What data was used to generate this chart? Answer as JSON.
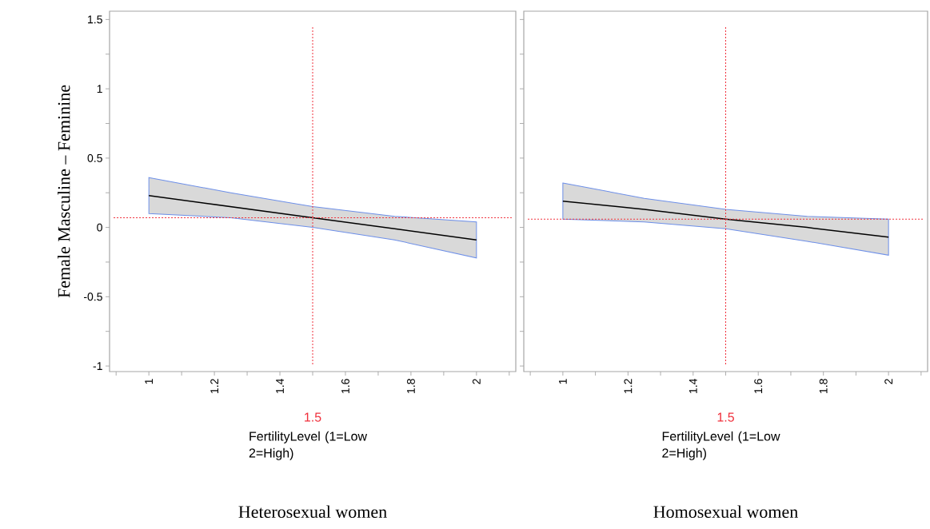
{
  "chart_data": [
    {
      "type": "line",
      "title": "Heterosexual women",
      "xlabel": "FertilityLevel (1=Low 2=High)",
      "ylabel": "Female Masculine – Feminine",
      "xlim": [
        0.88,
        2.12
      ],
      "ylim": [
        -1.04,
        1.56
      ],
      "xticks": [
        {
          "value": 0.9,
          "label": null
        },
        1,
        {
          "value": 1.1,
          "label": null
        },
        1.2,
        {
          "value": 1.3,
          "label": null
        },
        1.4,
        {
          "value": 1.5,
          "label": null
        },
        1.6,
        {
          "value": 1.7,
          "label": null
        },
        1.8,
        {
          "value": 1.9,
          "label": null
        },
        2,
        {
          "value": 2.1,
          "label": null
        }
      ],
      "yticks": [
        -1,
        {
          "value": -0.75,
          "label": null
        },
        -0.5,
        {
          "value": -0.25,
          "label": null
        },
        0,
        {
          "value": 0.25,
          "label": null
        },
        0.5,
        {
          "value": 0.75,
          "label": null
        },
        1,
        {
          "value": 1.25,
          "label": null
        },
        1.5
      ],
      "series": [
        {
          "color": "#000000",
          "x": [
            1,
            1.25,
            1.5,
            1.75,
            2
          ],
          "values": [
            0.23,
            0.15,
            0.07,
            -0.01,
            -0.09
          ],
          "lower": [
            0.1,
            0.07,
            0,
            -0.09,
            -0.22
          ],
          "upper": [
            0.36,
            0.25,
            0.15,
            0.08,
            0.04
          ]
        }
      ],
      "ref_lines": [
        {
          "axis": "x",
          "value": 1.5,
          "label": "1.5",
          "color": "#f0303c",
          "line_style": "dotted"
        },
        {
          "axis": "y",
          "value": 0.07,
          "color": "#f0303c",
          "line_style": "dotted"
        }
      ]
    },
    {
      "type": "line",
      "title": "Homosexual women",
      "xlabel": "FertilityLevel (1=Low 2=High)",
      "tick_labels": "x",
      "xlim": [
        0.88,
        2.12
      ],
      "ylim": [
        -1.04,
        1.56
      ],
      "xticks": [
        {
          "value": 0.9,
          "label": null
        },
        1,
        {
          "value": 1.1,
          "label": null
        },
        1.2,
        {
          "value": 1.3,
          "label": null
        },
        1.4,
        {
          "value": 1.5,
          "label": null
        },
        1.6,
        {
          "value": 1.7,
          "label": null
        },
        1.8,
        {
          "value": 1.9,
          "label": null
        },
        2,
        {
          "value": 2.1,
          "label": null
        }
      ],
      "yticks": [
        -1,
        {
          "value": -0.75,
          "label": null
        },
        -0.5,
        {
          "value": -0.25,
          "label": null
        },
        0,
        {
          "value": 0.25,
          "label": null
        },
        0.5,
        {
          "value": 0.75,
          "label": null
        },
        1,
        {
          "value": 1.25,
          "label": null
        },
        1.5
      ],
      "series": [
        {
          "color": "#000000",
          "x": [
            1,
            1.25,
            1.5,
            1.75,
            2
          ],
          "values": [
            0.19,
            0.13,
            0.06,
            0,
            -0.07
          ],
          "lower": [
            0.06,
            0.04,
            -0.01,
            -0.1,
            -0.2
          ],
          "upper": [
            0.32,
            0.21,
            0.13,
            0.08,
            0.06
          ]
        }
      ],
      "ref_lines": [
        {
          "axis": "x",
          "value": 1.5,
          "label": "1.5",
          "color": "#f0303c",
          "line_style": "dotted"
        },
        {
          "axis": "y",
          "value": 0.06,
          "color": "#f0303c",
          "line_style": "dotted"
        }
      ]
    }
  ]
}
